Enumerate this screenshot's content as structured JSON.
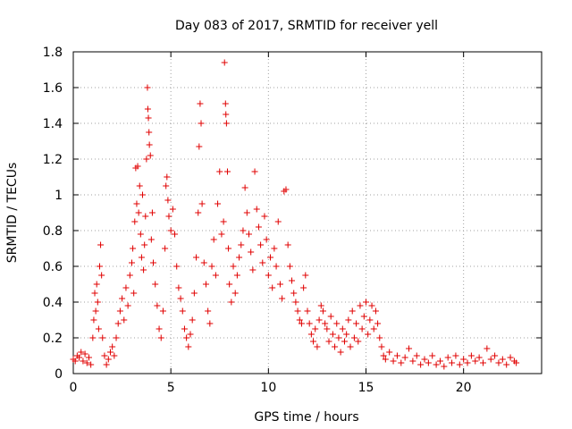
{
  "chart_data": {
    "type": "scatter",
    "title": "Day 083 of 2017, SRMTID for receiver yell",
    "xlabel": "GPS time / hours",
    "ylabel": "SRMTID / TECUs",
    "xlim": [
      0,
      24
    ],
    "ylim": [
      0,
      1.8
    ],
    "xticks": [
      0,
      5,
      10,
      15,
      20
    ],
    "xtick_labels": [
      "0",
      "5",
      "10",
      "15",
      "20"
    ],
    "yticks": [
      0,
      0.2,
      0.4,
      0.6,
      0.8,
      1,
      1.2,
      1.4,
      1.6,
      1.8
    ],
    "ytick_labels": [
      "0",
      "0.2",
      "0.4",
      "0.6",
      "0.8",
      "1",
      "1.2",
      "1.4",
      "1.6",
      "1.8"
    ],
    "grid": true,
    "marker": "plus",
    "color": "#e00000",
    "series": [
      {
        "name": "SRMTID",
        "points": [
          [
            0.0,
            0.08
          ],
          [
            0.1,
            0.07
          ],
          [
            0.2,
            0.1
          ],
          [
            0.3,
            0.09
          ],
          [
            0.4,
            0.12
          ],
          [
            0.5,
            0.07
          ],
          [
            0.6,
            0.11
          ],
          [
            0.7,
            0.06
          ],
          [
            0.8,
            0.09
          ],
          [
            0.9,
            0.05
          ],
          [
            1.0,
            0.2
          ],
          [
            1.05,
            0.3
          ],
          [
            1.1,
            0.45
          ],
          [
            1.15,
            0.35
          ],
          [
            1.2,
            0.5
          ],
          [
            1.25,
            0.4
          ],
          [
            1.3,
            0.25
          ],
          [
            1.35,
            0.6
          ],
          [
            1.4,
            0.72
          ],
          [
            1.45,
            0.55
          ],
          [
            1.5,
            0.2
          ],
          [
            1.6,
            0.1
          ],
          [
            1.7,
            0.05
          ],
          [
            1.8,
            0.08
          ],
          [
            1.9,
            0.12
          ],
          [
            2.0,
            0.15
          ],
          [
            2.1,
            0.1
          ],
          [
            2.2,
            0.2
          ],
          [
            2.3,
            0.28
          ],
          [
            2.4,
            0.35
          ],
          [
            2.5,
            0.42
          ],
          [
            2.6,
            0.3
          ],
          [
            2.7,
            0.48
          ],
          [
            2.8,
            0.38
          ],
          [
            2.9,
            0.55
          ],
          [
            3.0,
            0.62
          ],
          [
            3.05,
            0.7
          ],
          [
            3.1,
            0.45
          ],
          [
            3.15,
            0.85
          ],
          [
            3.2,
            1.15
          ],
          [
            3.25,
            0.95
          ],
          [
            3.3,
            1.16
          ],
          [
            3.35,
            0.9
          ],
          [
            3.4,
            1.05
          ],
          [
            3.45,
            0.78
          ],
          [
            3.5,
            0.65
          ],
          [
            3.55,
            1.0
          ],
          [
            3.6,
            0.58
          ],
          [
            3.65,
            0.72
          ],
          [
            3.7,
            0.88
          ],
          [
            3.75,
            1.2
          ],
          [
            3.8,
            1.6
          ],
          [
            3.82,
            1.48
          ],
          [
            3.85,
            1.43
          ],
          [
            3.88,
            1.35
          ],
          [
            3.9,
            1.28
          ],
          [
            3.95,
            1.22
          ],
          [
            4.0,
            0.75
          ],
          [
            4.05,
            0.9
          ],
          [
            4.1,
            0.62
          ],
          [
            4.2,
            0.5
          ],
          [
            4.3,
            0.38
          ],
          [
            4.4,
            0.25
          ],
          [
            4.5,
            0.2
          ],
          [
            4.6,
            0.35
          ],
          [
            4.7,
            0.7
          ],
          [
            4.75,
            1.05
          ],
          [
            4.8,
            1.1
          ],
          [
            4.85,
            0.97
          ],
          [
            4.9,
            0.88
          ],
          [
            5.0,
            0.8
          ],
          [
            5.1,
            0.92
          ],
          [
            5.2,
            0.78
          ],
          [
            5.3,
            0.6
          ],
          [
            5.4,
            0.48
          ],
          [
            5.5,
            0.42
          ],
          [
            5.6,
            0.35
          ],
          [
            5.7,
            0.25
          ],
          [
            5.8,
            0.2
          ],
          [
            5.9,
            0.15
          ],
          [
            6.0,
            0.22
          ],
          [
            6.1,
            0.3
          ],
          [
            6.2,
            0.45
          ],
          [
            6.3,
            0.65
          ],
          [
            6.4,
            0.9
          ],
          [
            6.45,
            1.27
          ],
          [
            6.5,
            1.51
          ],
          [
            6.55,
            1.4
          ],
          [
            6.6,
            0.95
          ],
          [
            6.7,
            0.62
          ],
          [
            6.8,
            0.5
          ],
          [
            6.9,
            0.35
          ],
          [
            7.0,
            0.28
          ],
          [
            7.1,
            0.6
          ],
          [
            7.2,
            0.75
          ],
          [
            7.3,
            0.55
          ],
          [
            7.4,
            0.95
          ],
          [
            7.5,
            1.13
          ],
          [
            7.6,
            0.78
          ],
          [
            7.7,
            0.85
          ],
          [
            7.75,
            1.74
          ],
          [
            7.8,
            1.51
          ],
          [
            7.82,
            1.45
          ],
          [
            7.85,
            1.4
          ],
          [
            7.9,
            1.13
          ],
          [
            7.95,
            0.7
          ],
          [
            8.0,
            0.5
          ],
          [
            8.1,
            0.4
          ],
          [
            8.2,
            0.6
          ],
          [
            8.3,
            0.45
          ],
          [
            8.4,
            0.55
          ],
          [
            8.5,
            0.65
          ],
          [
            8.6,
            0.72
          ],
          [
            8.7,
            0.8
          ],
          [
            8.8,
            1.04
          ],
          [
            8.9,
            0.9
          ],
          [
            9.0,
            0.78
          ],
          [
            9.1,
            0.68
          ],
          [
            9.2,
            0.58
          ],
          [
            9.3,
            1.13
          ],
          [
            9.4,
            0.92
          ],
          [
            9.5,
            0.82
          ],
          [
            9.6,
            0.72
          ],
          [
            9.7,
            0.62
          ],
          [
            9.8,
            0.88
          ],
          [
            9.9,
            0.75
          ],
          [
            10.0,
            0.55
          ],
          [
            10.1,
            0.65
          ],
          [
            10.2,
            0.48
          ],
          [
            10.3,
            0.7
          ],
          [
            10.4,
            0.6
          ],
          [
            10.5,
            0.85
          ],
          [
            10.6,
            0.5
          ],
          [
            10.7,
            0.42
          ],
          [
            10.8,
            1.02
          ],
          [
            10.9,
            1.03
          ],
          [
            11.0,
            0.72
          ],
          [
            11.1,
            0.6
          ],
          [
            11.2,
            0.52
          ],
          [
            11.3,
            0.45
          ],
          [
            11.4,
            0.4
          ],
          [
            11.5,
            0.35
          ],
          [
            11.6,
            0.3
          ],
          [
            11.7,
            0.28
          ],
          [
            11.8,
            0.48
          ],
          [
            11.9,
            0.55
          ],
          [
            12.0,
            0.35
          ],
          [
            12.1,
            0.28
          ],
          [
            12.2,
            0.22
          ],
          [
            12.3,
            0.18
          ],
          [
            12.4,
            0.25
          ],
          [
            12.5,
            0.15
          ],
          [
            12.6,
            0.3
          ],
          [
            12.7,
            0.38
          ],
          [
            12.8,
            0.35
          ],
          [
            12.9,
            0.28
          ],
          [
            13.0,
            0.25
          ],
          [
            13.1,
            0.18
          ],
          [
            13.2,
            0.32
          ],
          [
            13.3,
            0.22
          ],
          [
            13.4,
            0.15
          ],
          [
            13.5,
            0.28
          ],
          [
            13.6,
            0.2
          ],
          [
            13.7,
            0.12
          ],
          [
            13.8,
            0.25
          ],
          [
            13.9,
            0.18
          ],
          [
            14.0,
            0.22
          ],
          [
            14.1,
            0.3
          ],
          [
            14.2,
            0.15
          ],
          [
            14.3,
            0.35
          ],
          [
            14.4,
            0.2
          ],
          [
            14.5,
            0.28
          ],
          [
            14.6,
            0.18
          ],
          [
            14.7,
            0.38
          ],
          [
            14.8,
            0.25
          ],
          [
            14.9,
            0.32
          ],
          [
            15.0,
            0.4
          ],
          [
            15.1,
            0.22
          ],
          [
            15.2,
            0.3
          ],
          [
            15.3,
            0.38
          ],
          [
            15.4,
            0.25
          ],
          [
            15.5,
            0.35
          ],
          [
            15.6,
            0.28
          ],
          [
            15.7,
            0.2
          ],
          [
            15.8,
            0.15
          ],
          [
            15.9,
            0.1
          ],
          [
            16.0,
            0.08
          ],
          [
            16.2,
            0.12
          ],
          [
            16.4,
            0.07
          ],
          [
            16.6,
            0.1
          ],
          [
            16.8,
            0.06
          ],
          [
            17.0,
            0.09
          ],
          [
            17.2,
            0.14
          ],
          [
            17.4,
            0.07
          ],
          [
            17.6,
            0.1
          ],
          [
            17.8,
            0.05
          ],
          [
            18.0,
            0.08
          ],
          [
            18.2,
            0.06
          ],
          [
            18.4,
            0.1
          ],
          [
            18.6,
            0.05
          ],
          [
            18.8,
            0.07
          ],
          [
            19.0,
            0.04
          ],
          [
            19.2,
            0.09
          ],
          [
            19.4,
            0.06
          ],
          [
            19.6,
            0.1
          ],
          [
            19.8,
            0.05
          ],
          [
            20.0,
            0.08
          ],
          [
            20.2,
            0.06
          ],
          [
            20.4,
            0.1
          ],
          [
            20.6,
            0.07
          ],
          [
            20.8,
            0.09
          ],
          [
            21.0,
            0.06
          ],
          [
            21.2,
            0.14
          ],
          [
            21.4,
            0.08
          ],
          [
            21.6,
            0.1
          ],
          [
            21.8,
            0.06
          ],
          [
            22.0,
            0.08
          ],
          [
            22.2,
            0.05
          ],
          [
            22.4,
            0.09
          ],
          [
            22.6,
            0.07
          ],
          [
            22.7,
            0.06
          ]
        ]
      }
    ]
  }
}
